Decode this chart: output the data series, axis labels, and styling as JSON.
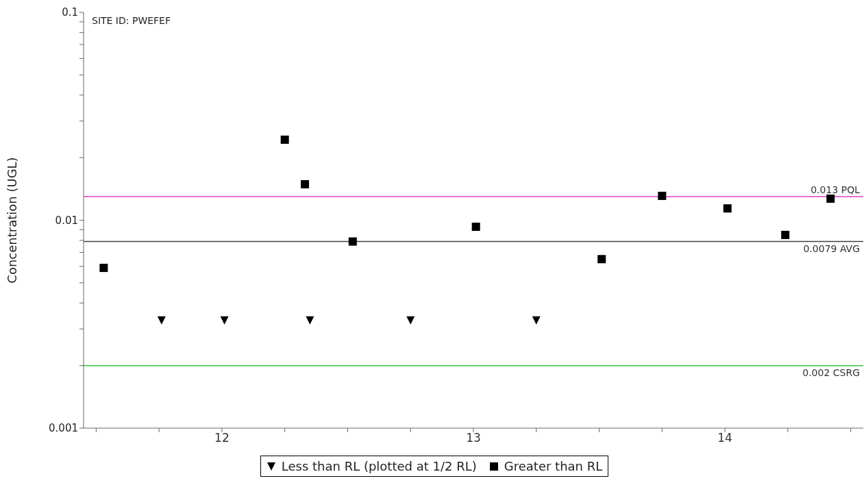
{
  "chart_data": {
    "type": "scatter",
    "ylabel": "Concentration (UGL)",
    "annotations": [
      "SITE ID: PWEFEF"
    ],
    "log": "y",
    "grid": false,
    "legend": "bottom",
    "xlim": [
      11.45,
      14.55
    ],
    "xticks": [
      {
        "value": 11.5,
        "label": null
      },
      {
        "value": 11.75,
        "label": null
      },
      12,
      {
        "value": 12.25,
        "label": null
      },
      {
        "value": 12.5,
        "label": null
      },
      {
        "value": 12.75,
        "label": null
      },
      13,
      {
        "value": 13.25,
        "label": null
      },
      {
        "value": 13.5,
        "label": null
      },
      {
        "value": 13.75,
        "label": null
      },
      14,
      {
        "value": 14.25,
        "label": null
      },
      {
        "value": 14.5,
        "label": null
      }
    ],
    "ylim": [
      0.001,
      0.1
    ],
    "yticks": [
      0.001,
      {
        "value": 0.002,
        "label": null
      },
      {
        "value": 0.003,
        "label": null
      },
      {
        "value": 0.004,
        "label": null
      },
      {
        "value": 0.005,
        "label": null
      },
      {
        "value": 0.006,
        "label": null
      },
      {
        "value": 0.007,
        "label": null
      },
      {
        "value": 0.008,
        "label": null
      },
      {
        "value": 0.009,
        "label": null
      },
      0.01,
      {
        "value": 0.02,
        "label": null
      },
      {
        "value": 0.03,
        "label": null
      },
      {
        "value": 0.04,
        "label": null
      },
      {
        "value": 0.05,
        "label": null
      },
      {
        "value": 0.06,
        "label": null
      },
      {
        "value": 0.07,
        "label": null
      },
      {
        "value": 0.08,
        "label": null
      },
      {
        "value": 0.09,
        "label": null
      },
      0.1
    ],
    "series": [
      {
        "name": "Less than RL (plotted at 1/2 RL)",
        "color": "#000000",
        "marker": "triangle",
        "x": [
          11.76,
          12.01,
          12.35,
          12.75,
          13.25
        ],
        "values": [
          0.0033,
          0.0033,
          0.0033,
          0.0033,
          0.0033
        ]
      },
      {
        "name": "Greater than RL",
        "color": "#000000",
        "marker": "square",
        "x": [
          11.53,
          12.25,
          12.33,
          12.52,
          13.01,
          13.51,
          13.75,
          14.01,
          14.24,
          14.42
        ],
        "values": [
          0.0059,
          0.0244,
          0.0149,
          0.0079,
          0.0093,
          0.0065,
          0.0131,
          0.0114,
          0.0085,
          0.0127
        ]
      }
    ],
    "ref_lines": [
      {
        "axis": "y",
        "value": 0.013,
        "label": "0.013 PQL",
        "color": "#e040c0"
      },
      {
        "axis": "y",
        "value": 0.0079,
        "label": "0.0079 AVG",
        "color": "#404040"
      },
      {
        "axis": "y",
        "value": 0.002,
        "label": "0.002 CSRG",
        "color": "#40c040"
      }
    ]
  }
}
